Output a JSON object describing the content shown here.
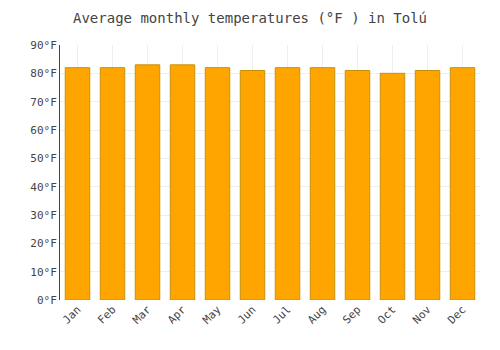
{
  "chart_data": {
    "type": "bar",
    "title": "Average monthly temperatures (°F ) in Tolú",
    "categories": [
      "Jan",
      "Feb",
      "Mar",
      "Apr",
      "May",
      "Jun",
      "Jul",
      "Aug",
      "Sep",
      "Oct",
      "Nov",
      "Dec"
    ],
    "values": [
      82,
      82,
      83,
      83,
      82,
      81,
      82,
      82,
      81,
      80,
      81,
      82
    ],
    "color": "#FFA500",
    "ylim": [
      0,
      90
    ],
    "yticks": [
      {
        "value": 0,
        "label": "0°F"
      },
      {
        "value": 10,
        "label": "10°F"
      },
      {
        "value": 20,
        "label": "20°F"
      },
      {
        "value": 30,
        "label": "30°F"
      },
      {
        "value": 40,
        "label": "40°F"
      },
      {
        "value": 50,
        "label": "50°F"
      },
      {
        "value": 60,
        "label": "60°F"
      },
      {
        "value": 70,
        "label": "70°F"
      },
      {
        "value": 80,
        "label": "80°F"
      },
      {
        "value": 90,
        "label": "90°F"
      }
    ],
    "grid": true
  }
}
